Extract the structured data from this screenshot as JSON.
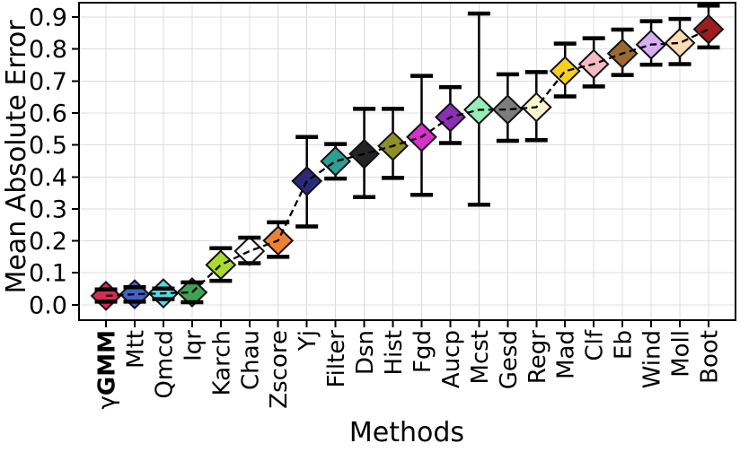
{
  "chart_data": {
    "type": "scatter",
    "subtype": "errorbar-diamonds-with-dashed-line",
    "title": "",
    "xlabel": "Methods",
    "ylabel": "Mean Absolute Error",
    "grid": true,
    "grid_color": "#dcdcdc",
    "line_color": "#000000",
    "line_style": "dashed",
    "marker": "diamond",
    "marker_edge_color": "#111111",
    "errorbar_color": "#000000",
    "xlim": [
      -0.94,
      21.94
    ],
    "ylim": [
      -0.048,
      0.945
    ],
    "ytick_values": [
      0.0,
      0.1,
      0.2,
      0.3,
      0.4,
      0.5,
      0.6,
      0.7,
      0.8,
      0.9
    ],
    "ytick_labels": [
      "0.0",
      "0.1",
      "0.2",
      "0.3",
      "0.4",
      "0.5",
      "0.6",
      "0.7",
      "0.8",
      "0.9"
    ],
    "points": [
      {
        "prefix": "γ",
        "label": "GMM",
        "bold": true,
        "value": 0.028,
        "lo": 0.01,
        "hi": 0.048,
        "color": "#d62b52"
      },
      {
        "prefix": "",
        "label": "Mtt",
        "bold": false,
        "value": 0.033,
        "lo": 0.01,
        "hi": 0.055,
        "color": "#3f63c6"
      },
      {
        "prefix": "",
        "label": "Qmcd",
        "bold": false,
        "value": 0.036,
        "lo": 0.018,
        "hi": 0.051,
        "color": "#52d9e4"
      },
      {
        "prefix": "",
        "label": "Iqr",
        "bold": false,
        "value": 0.039,
        "lo": 0.008,
        "hi": 0.07,
        "color": "#3fa351"
      },
      {
        "prefix": "",
        "label": "Karch",
        "bold": false,
        "value": 0.125,
        "lo": 0.075,
        "hi": 0.177,
        "color": "#a9dc28"
      },
      {
        "prefix": "",
        "label": "Chau",
        "bold": false,
        "value": 0.168,
        "lo": 0.13,
        "hi": 0.21,
        "color": "#ffffff"
      },
      {
        "prefix": "",
        "label": "Zscore",
        "bold": false,
        "value": 0.201,
        "lo": 0.15,
        "hi": 0.258,
        "color": "#ed8133"
      },
      {
        "prefix": "",
        "label": "Yj",
        "bold": false,
        "value": 0.387,
        "lo": 0.245,
        "hi": 0.525,
        "color": "#2a2a7c"
      },
      {
        "prefix": "",
        "label": "Filter",
        "bold": false,
        "value": 0.449,
        "lo": 0.395,
        "hi": 0.503,
        "color": "#2d9e96"
      },
      {
        "prefix": "",
        "label": "Dsn",
        "bold": false,
        "value": 0.472,
        "lo": 0.337,
        "hi": 0.613,
        "color": "#242424"
      },
      {
        "prefix": "",
        "label": "Hist",
        "bold": false,
        "value": 0.497,
        "lo": 0.397,
        "hi": 0.613,
        "color": "#8f8f28"
      },
      {
        "prefix": "",
        "label": "Fgd",
        "bold": false,
        "value": 0.525,
        "lo": 0.344,
        "hi": 0.716,
        "color": "#d830cc"
      },
      {
        "prefix": "",
        "label": "Aucp",
        "bold": false,
        "value": 0.587,
        "lo": 0.506,
        "hi": 0.681,
        "color": "#8c2eb8"
      },
      {
        "prefix": "",
        "label": "Mcst",
        "bold": false,
        "value": 0.61,
        "lo": 0.313,
        "hi": 0.911,
        "color": "#93efb5"
      },
      {
        "prefix": "",
        "label": "Gesd",
        "bold": false,
        "value": 0.611,
        "lo": 0.513,
        "hi": 0.721,
        "color": "#7d7d7d"
      },
      {
        "prefix": "",
        "label": "Regr",
        "bold": false,
        "value": 0.618,
        "lo": 0.515,
        "hi": 0.728,
        "color": "#f9f5cf"
      },
      {
        "prefix": "",
        "label": "Mad",
        "bold": false,
        "value": 0.731,
        "lo": 0.652,
        "hi": 0.817,
        "color": "#fccf1e"
      },
      {
        "prefix": "",
        "label": "Clf",
        "bold": false,
        "value": 0.753,
        "lo": 0.683,
        "hi": 0.834,
        "color": "#f5bac2"
      },
      {
        "prefix": "",
        "label": "Eb",
        "bold": false,
        "value": 0.786,
        "lo": 0.719,
        "hi": 0.861,
        "color": "#9c6a30"
      },
      {
        "prefix": "",
        "label": "Wind",
        "bold": false,
        "value": 0.814,
        "lo": 0.751,
        "hi": 0.887,
        "color": "#d7aef2"
      },
      {
        "prefix": "",
        "label": "Moll",
        "bold": false,
        "value": 0.819,
        "lo": 0.753,
        "hi": 0.894,
        "color": "#fcdcb0"
      },
      {
        "prefix": "",
        "label": "Boot",
        "bold": false,
        "value": 0.862,
        "lo": 0.805,
        "hi": 0.936,
        "color": "#9c1e1e"
      }
    ]
  }
}
